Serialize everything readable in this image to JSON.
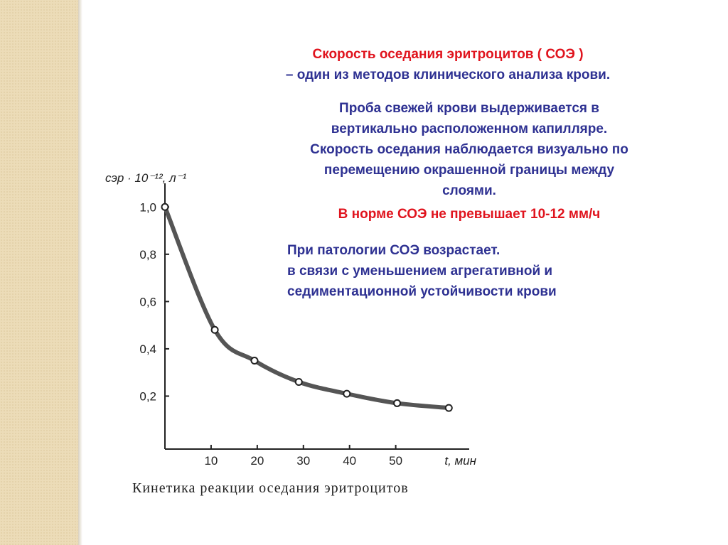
{
  "slide": {
    "title": "Скорость оседания эритроцитов ( СОЭ )",
    "subtitle": "– один из методов клинического анализа крови.",
    "paragraph1": [
      "Проба свежей крови выдерживается в",
      "вертикально расположенном капилляре.",
      "Скорость оседания наблюдается визуально по",
      "перемещению окрашенной границы между",
      "слоями."
    ],
    "norm": "В норме СОЭ не превышает 10-12 мм/ч",
    "paragraph2": [
      "При патологии СОЭ возрастает.",
      "в связи с уменьшением агрегативной и",
      "седиментационной устойчивости крови"
    ]
  },
  "chart_data": {
    "type": "line",
    "title": "Кинетика реакции оседания эритроцитов",
    "y_label": "cэр · 10⁻¹², л⁻¹",
    "x_label": "t, мин",
    "x": [
      0,
      10.8,
      19.4,
      29,
      39.4,
      50.3,
      61.5
    ],
    "values": [
      1.0,
      0.48,
      0.35,
      0.26,
      0.21,
      0.17,
      0.15
    ],
    "color": "#555555",
    "xlim": [
      0,
      65
    ],
    "ylim": [
      0,
      1.1
    ],
    "xticks": [
      10,
      20,
      30,
      40,
      50
    ],
    "yticks": [
      {
        "value": 0.2,
        "label": "0,2"
      },
      {
        "value": 0.4,
        "label": "0,4"
      },
      {
        "value": 0.6,
        "label": "0,6"
      },
      {
        "value": 0.8,
        "label": "0,8"
      },
      {
        "value": 1.0,
        "label": "1,0"
      }
    ]
  }
}
